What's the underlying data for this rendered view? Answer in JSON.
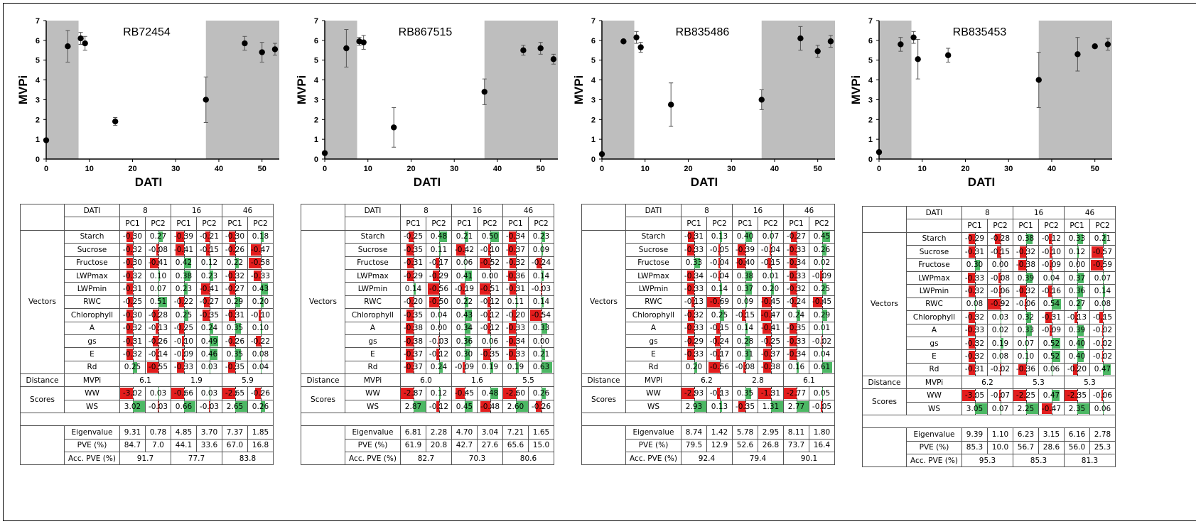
{
  "colors": {
    "negative": "#e31d1d",
    "positive": "#4cb864",
    "shade": "#bebebe"
  },
  "axis": {
    "xlabel": "DATI",
    "ylabel": "MVPi",
    "xticks": [
      0,
      10,
      20,
      30,
      40,
      50
    ],
    "yticks": [
      0,
      1,
      2,
      3,
      4,
      5,
      6,
      7
    ]
  },
  "row_labels": {
    "dati": "DATI",
    "vectors": "Vectors",
    "distance": "Distance",
    "mvpi": "MVPi",
    "scores": "Scores",
    "ww": "WW",
    "ws": "WS",
    "eigen": "Eigenvalue",
    "pve": "PVE (%)",
    "accpve": "Acc. PVE (%)",
    "pc1": "PC1",
    "pc2": "PC2"
  },
  "variables": [
    "Starch",
    "Sucrose",
    "Fructose",
    "LWPmax",
    "LWPmin",
    "RWC",
    "Chlorophyll",
    "A",
    "gs",
    "E",
    "Rd"
  ],
  "chart_data": [
    {
      "type": "scatter",
      "title": "RB72454",
      "xlabel": "DATI",
      "ylabel": "MVPi",
      "xlim": [
        0,
        54
      ],
      "ylim": [
        0,
        7
      ],
      "shaded": [
        [
          0,
          7.5
        ],
        [
          37,
          54
        ]
      ],
      "points": [
        {
          "x": 0,
          "y": 0.95,
          "e": 0.0
        },
        {
          "x": 5,
          "y": 5.7,
          "e": 0.8
        },
        {
          "x": 8,
          "y": 6.1,
          "e": 0.3
        },
        {
          "x": 9,
          "y": 5.85,
          "e": 0.35
        },
        {
          "x": 16,
          "y": 1.9,
          "e": 0.2
        },
        {
          "x": 37,
          "y": 3.0,
          "e": 1.15
        },
        {
          "x": 46,
          "y": 5.85,
          "e": 0.35
        },
        {
          "x": 50,
          "y": 5.4,
          "e": 0.5
        },
        {
          "x": 53,
          "y": 5.55,
          "e": 0.3
        }
      ]
    },
    {
      "type": "scatter",
      "title": "RB867515",
      "xlabel": "DATI",
      "ylabel": "MVPi",
      "xlim": [
        0,
        54
      ],
      "ylim": [
        0,
        7
      ],
      "shaded": [
        [
          0,
          7.5
        ],
        [
          37,
          54
        ]
      ],
      "points": [
        {
          "x": 0,
          "y": 0.3,
          "e": 0.0
        },
        {
          "x": 5,
          "y": 5.6,
          "e": 0.95
        },
        {
          "x": 8,
          "y": 5.95,
          "e": 0.2
        },
        {
          "x": 9,
          "y": 5.9,
          "e": 0.35
        },
        {
          "x": 16,
          "y": 1.6,
          "e": 1.0
        },
        {
          "x": 37,
          "y": 3.4,
          "e": 0.65
        },
        {
          "x": 46,
          "y": 5.5,
          "e": 0.25
        },
        {
          "x": 50,
          "y": 5.6,
          "e": 0.3
        },
        {
          "x": 53,
          "y": 5.05,
          "e": 0.25
        }
      ]
    },
    {
      "type": "scatter",
      "title": "RB835486",
      "xlabel": "DATI",
      "ylabel": "MVPi",
      "xlim": [
        0,
        54
      ],
      "ylim": [
        0,
        7
      ],
      "shaded": [
        [
          0,
          7.5
        ],
        [
          37,
          54
        ]
      ],
      "points": [
        {
          "x": 0,
          "y": 0.25,
          "e": 0.0
        },
        {
          "x": 5,
          "y": 5.95,
          "e": 0.0
        },
        {
          "x": 8,
          "y": 6.15,
          "e": 0.3
        },
        {
          "x": 9,
          "y": 5.65,
          "e": 0.25
        },
        {
          "x": 16,
          "y": 2.75,
          "e": 1.1
        },
        {
          "x": 37,
          "y": 3.0,
          "e": 0.5
        },
        {
          "x": 46,
          "y": 6.1,
          "e": 0.6
        },
        {
          "x": 50,
          "y": 5.45,
          "e": 0.3
        },
        {
          "x": 53,
          "y": 5.95,
          "e": 0.3
        }
      ]
    },
    {
      "type": "scatter",
      "title": "RB835453",
      "xlabel": "DATI",
      "ylabel": "MVPi",
      "xlim": [
        0,
        54
      ],
      "ylim": [
        0,
        7
      ],
      "shaded": [
        [
          0,
          7.5
        ],
        [
          37,
          54
        ]
      ],
      "points": [
        {
          "x": 0,
          "y": 0.35,
          "e": 0.0
        },
        {
          "x": 5,
          "y": 5.8,
          "e": 0.35
        },
        {
          "x": 8,
          "y": 6.15,
          "e": 0.3
        },
        {
          "x": 9,
          "y": 5.05,
          "e": 1.0
        },
        {
          "x": 16,
          "y": 5.25,
          "e": 0.35
        },
        {
          "x": 37,
          "y": 4.0,
          "e": 1.4
        },
        {
          "x": 46,
          "y": 5.3,
          "e": 0.85
        },
        {
          "x": 50,
          "y": 5.7,
          "e": 0.0
        },
        {
          "x": 53,
          "y": 5.8,
          "e": 0.3
        }
      ]
    }
  ],
  "tables": [
    {
      "dati": [
        "8",
        "16",
        "46"
      ],
      "vectors": [
        [
          "-0.30",
          "0.27",
          "-0.39",
          "-0.21",
          "-0.30",
          "0.18"
        ],
        [
          "-0.32",
          "-0.08",
          "-0.41",
          "-0.15",
          "-0.26",
          "-0.47"
        ],
        [
          "-0.30",
          "-0.41",
          "0.42",
          "0.12",
          "0.22",
          "-0.58"
        ],
        [
          "-0.32",
          "0.10",
          "0.38",
          "0.23",
          "-0.32",
          "-0.33"
        ],
        [
          "-0.31",
          "0.07",
          "0.23",
          "-0.41",
          "-0.27",
          "0.43"
        ],
        [
          "-0.25",
          "0.51",
          "-0.22",
          "-0.27",
          "0.29",
          "0.20"
        ],
        [
          "-0.30",
          "-0.28",
          "0.25",
          "-0.35",
          "-0.31",
          "-0.10"
        ],
        [
          "-0.32",
          "-0.13",
          "-0.25",
          "0.24",
          "0.35",
          "0.10"
        ],
        [
          "-0.31",
          "-0.26",
          "-0.10",
          "0.49",
          "-0.26",
          "-0.22"
        ],
        [
          "-0.32",
          "-0.14",
          "-0.09",
          "0.46",
          "0.35",
          "0.08"
        ],
        [
          "0.25",
          "-0.55",
          "-0.33",
          "0.03",
          "-0.35",
          "0.04"
        ]
      ],
      "mvpi": [
        "6.1",
        "1.9",
        "5.9"
      ],
      "ww": [
        "-3.02",
        "0.03",
        "-0.66",
        "0.03",
        "-2.65",
        "-0.26"
      ],
      "ws": [
        "3.02",
        "-0.03",
        "0.66",
        "-0.03",
        "2.65",
        "0.26"
      ],
      "eigen": [
        "9.31",
        "0.78",
        "4.85",
        "3.70",
        "7.37",
        "1.85"
      ],
      "pve": [
        "84.7",
        "7.0",
        "44.1",
        "33.6",
        "67.0",
        "16.8"
      ],
      "acc": [
        "91.7",
        "77.7",
        "83.8"
      ]
    },
    {
      "dati": [
        "8",
        "16",
        "46"
      ],
      "vectors": [
        [
          "-0.25",
          "0.48",
          "0.21",
          "0.50",
          "-0.34",
          "0.23"
        ],
        [
          "-0.35",
          "0.11",
          "-0.42",
          "-0.10",
          "-0.37",
          "0.09"
        ],
        [
          "-0.31",
          "-0.17",
          "0.06",
          "-0.52",
          "-0.32",
          "-0.24"
        ],
        [
          "-0.29",
          "-0.29",
          "0.41",
          "0.00",
          "-0.36",
          "0.14"
        ],
        [
          "0.14",
          "-0.56",
          "-0.19",
          "-0.51",
          "-0.31",
          "-0.03"
        ],
        [
          "-0.20",
          "-0.50",
          "0.22",
          "-0.12",
          "0.11",
          "0.14"
        ],
        [
          "-0.35",
          "0.04",
          "0.43",
          "-0.12",
          "-0.20",
          "-0.54"
        ],
        [
          "-0.38",
          "0.00",
          "0.34",
          "-0.12",
          "-0.33",
          "0.33"
        ],
        [
          "-0.38",
          "-0.03",
          "0.36",
          "0.06",
          "-0.34",
          "0.00"
        ],
        [
          "-0.37",
          "-0.12",
          "0.30",
          "-0.35",
          "-0.33",
          "0.21"
        ],
        [
          "-0.37",
          "0.24",
          "-0.09",
          "0.19",
          "0.19",
          "0.63"
        ]
      ],
      "mvpi": [
        "6.0",
        "1.6",
        "5.5"
      ],
      "ww": [
        "-2.87",
        "0.12",
        "-0.45",
        "0.48",
        "-2.60",
        "0.26"
      ],
      "ws": [
        "2.87",
        "-0.12",
        "0.45",
        "-0.48",
        "2.60",
        "-0.26"
      ],
      "eigen": [
        "6.81",
        "2.28",
        "4.70",
        "3.04",
        "7.21",
        "1.65"
      ],
      "pve": [
        "61.9",
        "20.8",
        "42.7",
        "27.6",
        "65.6",
        "15.0"
      ],
      "acc": [
        "82.7",
        "70.3",
        "80.6"
      ]
    },
    {
      "dati": [
        "8",
        "16",
        "46"
      ],
      "vectors": [
        [
          "-0.31",
          "0.13",
          "0.40",
          "0.07",
          "-0.27",
          "0.45"
        ],
        [
          "-0.33",
          "-0.05",
          "-0.39",
          "-0.04",
          "-0.33",
          "0.26"
        ],
        [
          "0.33",
          "-0.04",
          "-0.40",
          "-0.15",
          "-0.34",
          "0.02"
        ],
        [
          "-0.34",
          "-0.04",
          "0.38",
          "0.01",
          "-0.33",
          "-0.09"
        ],
        [
          "-0.33",
          "0.14",
          "0.37",
          "0.20",
          "-0.32",
          "0.25"
        ],
        [
          "-0.13",
          "-0.69",
          "0.09",
          "-0.45",
          "-0.24",
          "-0.45"
        ],
        [
          "-0.32",
          "0.25",
          "-0.15",
          "-0.47",
          "0.24",
          "0.29"
        ],
        [
          "-0.33",
          "-0.15",
          "0.14",
          "-0.41",
          "-0.35",
          "0.01"
        ],
        [
          "-0.29",
          "-0.24",
          "0.28",
          "-0.25",
          "-0.33",
          "-0.02"
        ],
        [
          "-0.33",
          "-0.17",
          "0.31",
          "-0.37",
          "-0.34",
          "0.04"
        ],
        [
          "0.20",
          "-0.56",
          "-0.08",
          "-0.38",
          "0.16",
          "0.61"
        ]
      ],
      "mvpi": [
        "6.2",
        "2.8",
        "6.1"
      ],
      "ww": [
        "-2.93",
        "-0.13",
        "0.35",
        "-1.31",
        "-2.77",
        "0.05"
      ],
      "ws": [
        "2.93",
        "0.13",
        "-0.35",
        "1.31",
        "2.77",
        "-0.05"
      ],
      "eigen": [
        "8.74",
        "1.42",
        "5.78",
        "2.95",
        "8.11",
        "1.80"
      ],
      "pve": [
        "79.5",
        "12.9",
        "52.6",
        "26.8",
        "73.7",
        "16.4"
      ],
      "acc": [
        "92.4",
        "79.4",
        "90.1"
      ]
    },
    {
      "dati": [
        "8",
        "16",
        "46"
      ],
      "vectors": [
        [
          "-0.29",
          "-0.28",
          "0.38",
          "-0.12",
          "0.33",
          "0.21"
        ],
        [
          "-0.31",
          "-0.15",
          "-0.32",
          "-0.10",
          "0.12",
          "-0.57"
        ],
        [
          "0.30",
          "0.00",
          "-0.38",
          "-0.09",
          "0.00",
          "-0.59"
        ],
        [
          "-0.33",
          "-0.08",
          "0.39",
          "0.04",
          "0.37",
          "0.07"
        ],
        [
          "-0.32",
          "-0.06",
          "-0.32",
          "-0.16",
          "0.36",
          "0.14"
        ],
        [
          "0.08",
          "-0.92",
          "-0.06",
          "0.54",
          "0.27",
          "0.08"
        ],
        [
          "-0.32",
          "0.03",
          "0.32",
          "-0.31",
          "-0.13",
          "-0.15"
        ],
        [
          "-0.33",
          "0.02",
          "0.33",
          "-0.09",
          "0.39",
          "-0.02"
        ],
        [
          "-0.32",
          "0.19",
          "0.07",
          "0.52",
          "0.40",
          "-0.02"
        ],
        [
          "-0.32",
          "0.08",
          "0.10",
          "0.52",
          "0.40",
          "-0.02"
        ],
        [
          "-0.31",
          "-0.02",
          "-0.36",
          "0.06",
          "-0.20",
          "0.47"
        ]
      ],
      "mvpi": [
        "6.2",
        "5.3",
        "5.3"
      ],
      "ww": [
        "-3.05",
        "-0.07",
        "-2.25",
        "0.47",
        "-2.35",
        "-0.06"
      ],
      "ws": [
        "3.05",
        "0.07",
        "2.25",
        "-0.47",
        "2.35",
        "0.06"
      ],
      "eigen": [
        "9.39",
        "1.10",
        "6.23",
        "3.15",
        "6.16",
        "2.78"
      ],
      "pve": [
        "85.3",
        "10.0",
        "56.7",
        "28.6",
        "56.0",
        "25.3"
      ],
      "acc": [
        "95.3",
        "85.3",
        "81.3"
      ]
    }
  ]
}
